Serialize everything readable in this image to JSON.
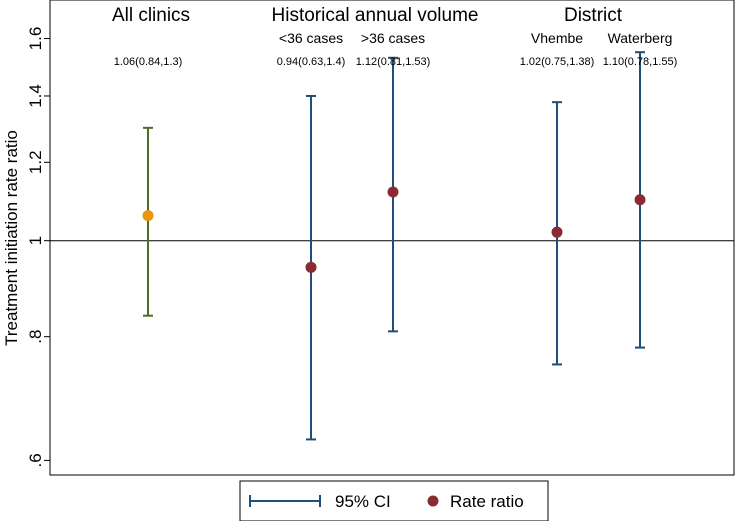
{
  "chart_data": {
    "type": "errorbar",
    "ylabel": "Treatment initiation rate ratio",
    "yscale": "log",
    "ylim": [
      0.58,
      1.75
    ],
    "yticks": [
      {
        "value": 0.6,
        "label": ".6"
      },
      {
        "value": 0.8,
        "label": ".8"
      },
      {
        "value": 1.0,
        "label": "1"
      },
      {
        "value": 1.2,
        "label": "1.2"
      },
      {
        "value": 1.4,
        "label": "1.4"
      },
      {
        "value": 1.6,
        "label": "1.6"
      }
    ],
    "reference_line": 1.0,
    "group_headers": [
      "All clinics",
      "Historical annual volume",
      "District"
    ],
    "points": [
      {
        "group": "All clinics",
        "label": "",
        "estimate": 1.06,
        "ci_low": 0.84,
        "ci_high": 1.3,
        "annotation": "1.06(0.84,1.3)",
        "point_color": "#E8960C",
        "bar_color": "#4E6B2A"
      },
      {
        "group": "Historical annual volume",
        "label": "<36 cases",
        "estimate": 0.94,
        "ci_low": 0.63,
        "ci_high": 1.4,
        "annotation": "0.94(0.63,1.4)",
        "point_color": "#8B2A33",
        "bar_color": "#1F4E79"
      },
      {
        "group": "Historical annual volume",
        "label": ">36 cases",
        "estimate": 1.12,
        "ci_low": 0.81,
        "ci_high": 1.53,
        "annotation": "1.12(0.81,1.53)",
        "point_color": "#8B2A33",
        "bar_color": "#1F4E79"
      },
      {
        "group": "District",
        "label": "Vhembe",
        "estimate": 1.02,
        "ci_low": 0.75,
        "ci_high": 1.38,
        "annotation": "1.02(0.75,1.38)",
        "point_color": "#8B2A33",
        "bar_color": "#1F4E79"
      },
      {
        "group": "District",
        "label": "Waterberg",
        "estimate": 1.1,
        "ci_low": 0.78,
        "ci_high": 1.55,
        "annotation": "1.10(0.78,1.55)",
        "point_color": "#8B2A33",
        "bar_color": "#1F4E79"
      }
    ],
    "legend": [
      {
        "label": "95% CI",
        "kind": "errorbar",
        "color": "#1F4E79"
      },
      {
        "label": "Rate ratio",
        "kind": "marker",
        "color": "#8B2A33"
      }
    ]
  }
}
